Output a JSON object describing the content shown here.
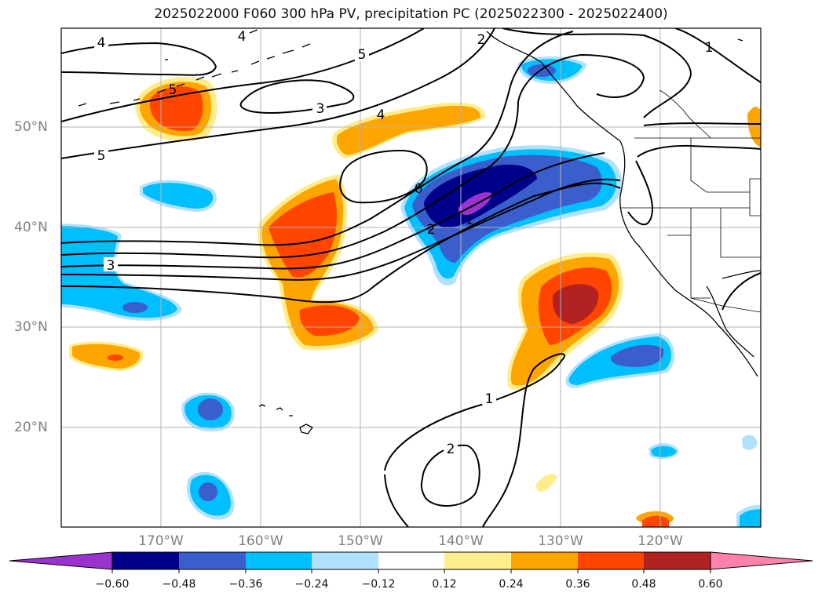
{
  "title": "2025022000 F060 300 hPa PV, precipitation PC (2025022300 - 2025022400)",
  "lat_labels": [
    "50°N",
    "40°N",
    "30°N",
    "20°N"
  ],
  "lon_labels": [
    "170°W",
    "160°W",
    "150°W",
    "140°W",
    "130°W",
    "120°W"
  ],
  "contour_labels": [
    "4",
    "4",
    "5",
    "5",
    "3",
    "4",
    "5",
    "6",
    "2",
    "1",
    "3",
    "1",
    "2",
    "2",
    "1"
  ],
  "colorbar": {
    "tick_labels": [
      "−0.60",
      "−0.48",
      "−0.36",
      "−0.24",
      "−0.12",
      "0.12",
      "0.24",
      "0.36",
      "0.48",
      "0.60"
    ],
    "colors": [
      "#9a32cd",
      "#00008b",
      "#3a5fcd",
      "#00bfff",
      "#b0e2ff",
      "#ffffff",
      "#ffec8b",
      "#ffa500",
      "#ff4500",
      "#b22222",
      "#ff82ab"
    ]
  }
}
